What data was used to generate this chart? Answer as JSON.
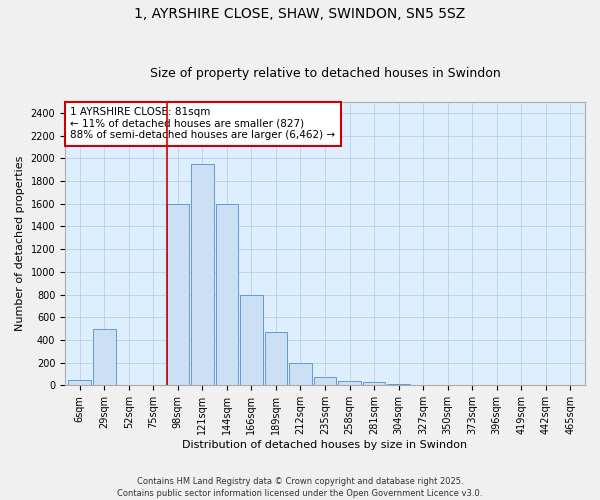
{
  "title": "1, AYRSHIRE CLOSE, SHAW, SWINDON, SN5 5SZ",
  "subtitle": "Size of property relative to detached houses in Swindon",
  "xlabel": "Distribution of detached houses by size in Swindon",
  "ylabel": "Number of detached properties",
  "categories": [
    "6sqm",
    "29sqm",
    "52sqm",
    "75sqm",
    "98sqm",
    "121sqm",
    "144sqm",
    "166sqm",
    "189sqm",
    "212sqm",
    "235sqm",
    "258sqm",
    "281sqm",
    "304sqm",
    "327sqm",
    "350sqm",
    "373sqm",
    "396sqm",
    "419sqm",
    "442sqm",
    "465sqm"
  ],
  "values": [
    50,
    500,
    0,
    0,
    1600,
    1950,
    1600,
    800,
    470,
    195,
    75,
    40,
    30,
    15,
    5,
    3,
    2,
    1,
    1,
    0,
    1
  ],
  "bar_color": "#cce0f5",
  "bar_edge_color": "#6699cc",
  "grid_color": "#b8cfe8",
  "background_color": "#ddeeff",
  "fig_bg_color": "#f0f0f0",
  "vline_x": 3.55,
  "vline_color": "#cc0000",
  "annotation_text": "1 AYRSHIRE CLOSE: 81sqm\n← 11% of detached houses are smaller (827)\n88% of semi-detached houses are larger (6,462) →",
  "annotation_box_color": "#cc0000",
  "ylim": [
    0,
    2500
  ],
  "yticks": [
    0,
    200,
    400,
    600,
    800,
    1000,
    1200,
    1400,
    1600,
    1800,
    2000,
    2200,
    2400
  ],
  "footer": "Contains HM Land Registry data © Crown copyright and database right 2025.\nContains public sector information licensed under the Open Government Licence v3.0.",
  "title_fontsize": 10,
  "subtitle_fontsize": 9,
  "axis_label_fontsize": 8,
  "tick_fontsize": 7,
  "annotation_fontsize": 7.5,
  "footer_fontsize": 6
}
